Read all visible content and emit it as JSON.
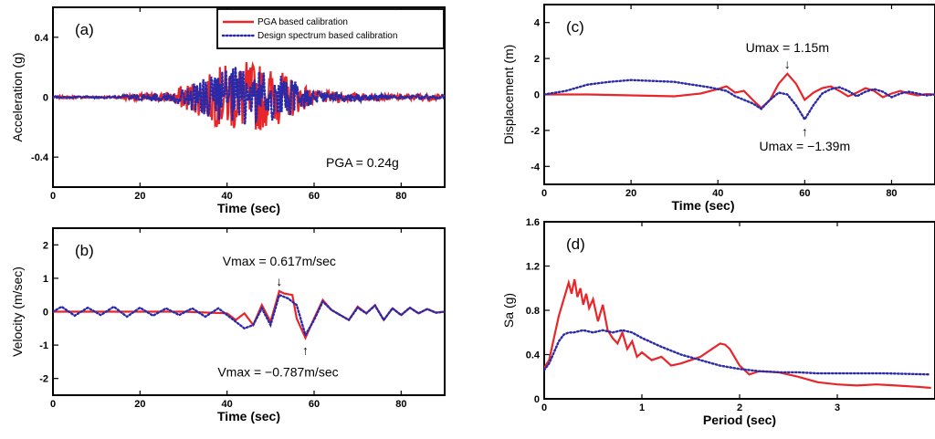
{
  "colors": {
    "pga": "#e8262a",
    "design": "#2a2aa8",
    "axis": "#000000"
  },
  "legend": {
    "pga_label": "PGA based calibration",
    "design_label": "Design spectrum based calibration",
    "placement": "top-right"
  },
  "chart_data": [
    {
      "id": "a",
      "type": "line",
      "panel_label": "(a)",
      "xlabel": "Time (sec)",
      "ylabel": "Acceleration (g)",
      "xlim": [
        0,
        90
      ],
      "ylim": [
        -0.6,
        0.6
      ],
      "xticks": [
        0,
        20,
        40,
        60,
        80
      ],
      "yticks": [
        -0.4,
        0,
        0.4
      ],
      "xtick_labels": [
        "0",
        "20",
        "40",
        "60",
        "80"
      ],
      "ytick_labels": [
        "-0.4",
        "0",
        "0.4"
      ],
      "annotation": "PGA = 0.24g",
      "kind": "accel",
      "series": [
        {
          "name": "PGA based calibration",
          "style": "solid",
          "amp": 0.24,
          "peak": 0.24
        },
        {
          "name": "Design spectrum based calibration",
          "style": "dotted",
          "amp": 0.21,
          "peak": 0.21
        }
      ]
    },
    {
      "id": "b",
      "type": "line",
      "panel_label": "(b)",
      "xlabel": "Time (sec)",
      "ylabel": "Velocity (m/sec)",
      "xlim": [
        0,
        90
      ],
      "ylim": [
        -2.5,
        2.5
      ],
      "xticks": [
        0,
        20,
        40,
        60,
        80
      ],
      "yticks": [
        -2,
        -1,
        0,
        1,
        2
      ],
      "xtick_labels": [
        "0",
        "20",
        "40",
        "60",
        "80"
      ],
      "ytick_labels": [
        "-2",
        "-1",
        "0",
        "1",
        "2"
      ],
      "annotation_max": "Vmax = 0.617m/sec",
      "annotation_min": "Vmax = −0.787m/sec",
      "max_point": [
        52,
        0.617
      ],
      "min_point": [
        58,
        -0.787
      ],
      "kind": "vel",
      "series": [
        {
          "name": "PGA based calibration",
          "style": "solid",
          "x": [
            0,
            30,
            40,
            42,
            44,
            46,
            48,
            50,
            52,
            53,
            55,
            56,
            58,
            60,
            62,
            64,
            66,
            68,
            70,
            72,
            74,
            76,
            78,
            80,
            82,
            84,
            86,
            88,
            90
          ],
          "y": [
            0,
            0,
            -0.05,
            -0.25,
            -0.05,
            -0.4,
            0.2,
            -0.3,
            0.617,
            0.55,
            0.5,
            -0.2,
            -0.787,
            -0.2,
            0.35,
            0.05,
            -0.1,
            -0.25,
            0.15,
            -0.05,
            0.2,
            -0.25,
            0.1,
            -0.1,
            0.12,
            -0.05,
            0.08,
            -0.03,
            0
          ]
        },
        {
          "name": "Design spectrum based calibration",
          "style": "dotted",
          "x": [
            0,
            2,
            5,
            8,
            11,
            14,
            17,
            20,
            23,
            26,
            29,
            32,
            35,
            38,
            40,
            42,
            44,
            46,
            48,
            50,
            52,
            54,
            56,
            58,
            60,
            62,
            64,
            66,
            68,
            70,
            72,
            74,
            76,
            78,
            80,
            82,
            84,
            86,
            88,
            90
          ],
          "y": [
            0,
            0.15,
            -0.12,
            0.12,
            -0.1,
            0.15,
            -0.15,
            0.12,
            -0.12,
            0.1,
            -0.1,
            0.1,
            -0.15,
            0.1,
            -0.1,
            -0.3,
            -0.5,
            -0.4,
            0.1,
            -0.4,
            0.5,
            0.4,
            0.2,
            -0.7,
            -0.25,
            0.3,
            0.05,
            -0.1,
            -0.25,
            0.12,
            -0.05,
            0.18,
            -0.25,
            0.1,
            -0.1,
            0.12,
            -0.05,
            0.08,
            -0.03,
            0
          ]
        }
      ]
    },
    {
      "id": "c",
      "type": "line",
      "panel_label": "(c)",
      "xlabel": "Time (sec)",
      "ylabel": "Displacement (m)",
      "xlim": [
        0,
        90
      ],
      "ylim": [
        -5,
        5
      ],
      "xticks": [
        0,
        20,
        40,
        60,
        80
      ],
      "yticks": [
        -4,
        -2,
        0,
        2,
        4
      ],
      "xtick_labels": [
        "0",
        "20",
        "40",
        "60",
        "80"
      ],
      "ytick_labels": [
        "-4",
        "-2",
        "0",
        "2",
        "4"
      ],
      "annotation_max": "Umax = 1.15m",
      "annotation_min": "Umax = −1.39m",
      "max_point": [
        56,
        1.15
      ],
      "min_point": [
        60,
        -1.39
      ],
      "kind": "disp",
      "series": [
        {
          "name": "PGA based calibration",
          "style": "solid",
          "x": [
            0,
            10,
            20,
            30,
            36,
            40,
            42,
            44,
            46,
            48,
            50,
            52,
            54,
            56,
            58,
            60,
            62,
            64,
            66,
            68,
            70,
            72,
            74,
            76,
            78,
            80,
            82,
            84,
            86,
            88,
            90
          ],
          "y": [
            0,
            0,
            -0.05,
            -0.1,
            0.05,
            0.3,
            0.45,
            0.1,
            0.2,
            -0.3,
            -0.75,
            -0.3,
            0.6,
            1.15,
            0.6,
            -0.3,
            0.1,
            0.35,
            0.45,
            0.2,
            -0.1,
            0.1,
            0.35,
            0.2,
            -0.15,
            0.05,
            0.2,
            0.05,
            -0.05,
            0.02,
            0
          ]
        },
        {
          "name": "Design spectrum based calibration",
          "style": "dotted",
          "x": [
            0,
            5,
            10,
            15,
            20,
            25,
            30,
            34,
            38,
            42,
            44,
            46,
            48,
            50,
            52,
            54,
            56,
            58,
            60,
            62,
            64,
            66,
            68,
            70,
            72,
            74,
            76,
            78,
            80,
            82,
            84,
            86,
            88,
            90
          ],
          "y": [
            0,
            0.2,
            0.55,
            0.7,
            0.8,
            0.75,
            0.7,
            0.55,
            0.4,
            0.2,
            -0.1,
            -0.3,
            -0.5,
            -0.8,
            -0.3,
            0.1,
            0.0,
            -0.6,
            -1.39,
            -0.6,
            0.05,
            0.3,
            0.4,
            0.2,
            -0.1,
            0.15,
            0.3,
            0.15,
            -0.15,
            0.05,
            0.15,
            0.05,
            -0.05,
            0
          ]
        }
      ]
    },
    {
      "id": "d",
      "type": "line",
      "panel_label": "(d)",
      "xlabel": "Period (sec)",
      "ylabel": "Sa (g)",
      "xlim": [
        0,
        4
      ],
      "ylim": [
        0,
        1.6
      ],
      "xticks": [
        0,
        1,
        2,
        3
      ],
      "yticks": [
        0,
        0.4,
        0.8,
        1.2,
        1.6
      ],
      "xtick_labels": [
        "0",
        "1",
        "2",
        "3"
      ],
      "ytick_labels": [
        "0",
        "0.4",
        "0.8",
        "1.2",
        "1.6"
      ],
      "kind": "spec",
      "series": [
        {
          "name": "PGA based calibration",
          "style": "solid",
          "x": [
            0,
            0.05,
            0.1,
            0.15,
            0.2,
            0.25,
            0.28,
            0.31,
            0.34,
            0.37,
            0.4,
            0.43,
            0.46,
            0.5,
            0.55,
            0.6,
            0.65,
            0.7,
            0.75,
            0.8,
            0.85,
            0.9,
            0.95,
            1.0,
            1.1,
            1.2,
            1.3,
            1.4,
            1.5,
            1.6,
            1.7,
            1.8,
            1.85,
            1.9,
            2.0,
            2.1,
            2.2,
            2.4,
            2.6,
            2.8,
            3.0,
            3.2,
            3.4,
            3.6,
            3.8,
            3.95
          ],
          "y": [
            0.28,
            0.35,
            0.55,
            0.75,
            0.9,
            1.05,
            0.95,
            1.08,
            0.92,
            1.0,
            0.85,
            0.95,
            0.82,
            0.9,
            0.7,
            0.85,
            0.62,
            0.55,
            0.5,
            0.6,
            0.45,
            0.52,
            0.38,
            0.42,
            0.35,
            0.38,
            0.3,
            0.32,
            0.35,
            0.38,
            0.44,
            0.5,
            0.49,
            0.45,
            0.3,
            0.22,
            0.25,
            0.24,
            0.2,
            0.15,
            0.13,
            0.12,
            0.13,
            0.12,
            0.11,
            0.1
          ]
        },
        {
          "name": "Design spectrum based calibration",
          "style": "dotted",
          "x": [
            0,
            0.05,
            0.1,
            0.15,
            0.2,
            0.25,
            0.3,
            0.4,
            0.5,
            0.6,
            0.7,
            0.8,
            0.9,
            1.0,
            1.2,
            1.4,
            1.6,
            1.8,
            2.0,
            2.2,
            2.4,
            2.6,
            2.8,
            3.0,
            3.5,
            3.95
          ],
          "y": [
            0.26,
            0.32,
            0.42,
            0.52,
            0.58,
            0.6,
            0.6,
            0.62,
            0.6,
            0.62,
            0.6,
            0.62,
            0.6,
            0.55,
            0.47,
            0.4,
            0.35,
            0.3,
            0.27,
            0.25,
            0.24,
            0.24,
            0.23,
            0.23,
            0.23,
            0.22
          ]
        }
      ]
    }
  ]
}
